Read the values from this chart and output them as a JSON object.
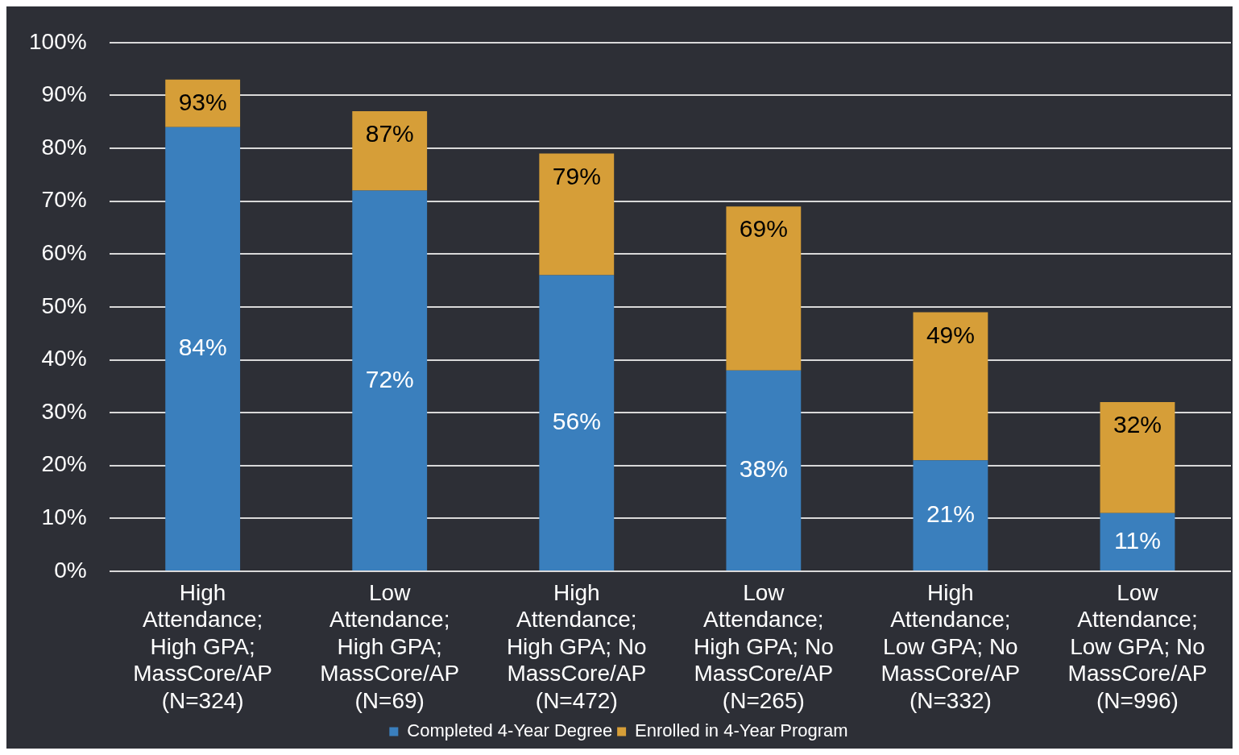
{
  "chart_data": {
    "type": "bar",
    "stacked": true,
    "categories": [
      "High Attendance; High GPA; MassCore/AP (N=324)",
      "Low Attendance; High GPA; MassCore/AP (N=69)",
      "High Attendance; High GPA; No MassCore/AP (N=472)",
      "Low Attendance; High GPA; No MassCore/AP (N=265)",
      "High Attendance; Low GPA; No MassCore/AP (N=332)",
      "Low Attendance; Low GPA; No MassCore/AP (N=996)"
    ],
    "series": [
      {
        "name": "Completed 4-Year Degree",
        "color": "#3a7fbd",
        "values": [
          84,
          72,
          56,
          38,
          21,
          11
        ],
        "value_labels": [
          "84%",
          "72%",
          "56%",
          "38%",
          "21%",
          "11%"
        ]
      },
      {
        "name": "Enrolled in 4-Year Program",
        "color": "#d69e38",
        "values": [
          9,
          15,
          23,
          31,
          28,
          21
        ]
      }
    ],
    "totals": [
      "93%",
      "87%",
      "79%",
      "69%",
      "49%",
      "32%"
    ],
    "ylim": [
      0,
      100
    ],
    "yticks": [
      {
        "value": 0,
        "label": "0%"
      },
      {
        "value": 10,
        "label": "10%"
      },
      {
        "value": 20,
        "label": "20%"
      },
      {
        "value": 30,
        "label": "30%"
      },
      {
        "value": 40,
        "label": "40%"
      },
      {
        "value": 50,
        "label": "50%"
      },
      {
        "value": 60,
        "label": "60%"
      },
      {
        "value": 70,
        "label": "70%"
      },
      {
        "value": 80,
        "label": "80%"
      },
      {
        "value": 90,
        "label": "90%"
      },
      {
        "value": 100,
        "label": "100%"
      }
    ],
    "grid": "y",
    "legend": "bottom"
  }
}
